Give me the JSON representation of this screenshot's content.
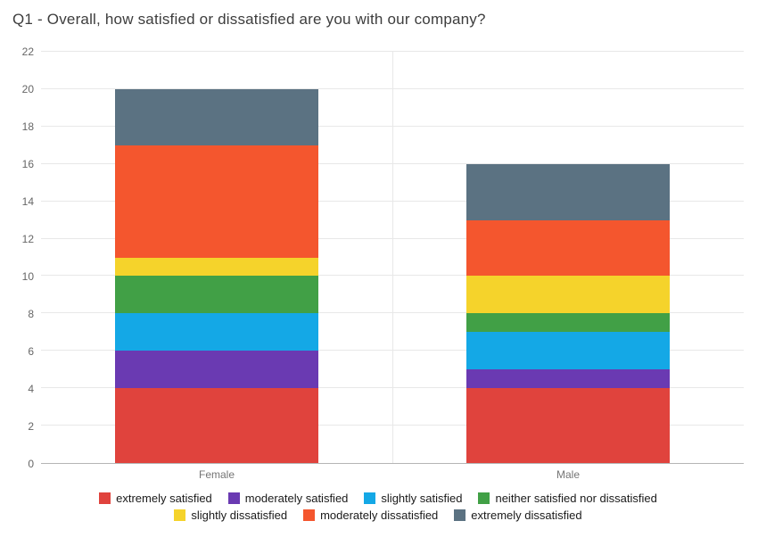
{
  "title": "Q1 - Overall, how satisfied or dissatisfied are you with our company?",
  "chart_data": {
    "type": "bar",
    "stacked": true,
    "title": "Q1 - Overall, how satisfied or dissatisfied are you with our company?",
    "categories": [
      "Female",
      "Male"
    ],
    "series": [
      {
        "name": "extremely satisfied",
        "color": "#e0433d",
        "values": [
          4,
          4
        ]
      },
      {
        "name": "moderately satisfied",
        "color": "#6a3ab2",
        "values": [
          2,
          1
        ]
      },
      {
        "name": "slightly satisfied",
        "color": "#14a8e6",
        "values": [
          2,
          2
        ]
      },
      {
        "name": "neither satisfied nor dissatisfied",
        "color": "#41a046",
        "values": [
          2,
          1
        ]
      },
      {
        "name": "slightly dissatisfied",
        "color": "#f5d32b",
        "values": [
          1,
          2
        ]
      },
      {
        "name": "moderately dissatisfied",
        "color": "#f4562e",
        "values": [
          6,
          3
        ]
      },
      {
        "name": "extremely dissatisfied",
        "color": "#5b7282",
        "values": [
          3,
          3
        ]
      }
    ],
    "totals": {
      "Female": 20,
      "Male": 16
    },
    "xlabel": "",
    "ylabel": "",
    "ylim": [
      0,
      22
    ],
    "ytick_step": 2,
    "ytick_labels": [
      "0",
      "2",
      "4",
      "6",
      "8",
      "10",
      "12",
      "14",
      "16",
      "18",
      "20",
      "22"
    ],
    "grid": true,
    "legend_position": "bottom",
    "legend_rows": [
      4,
      3
    ]
  }
}
